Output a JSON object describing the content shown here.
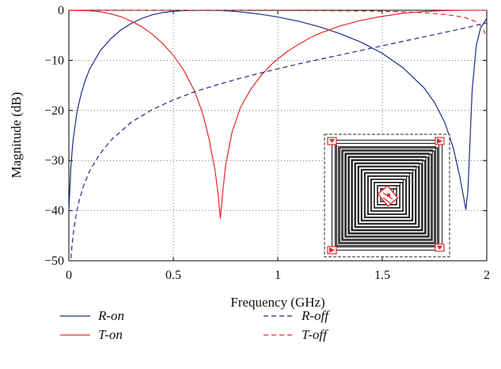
{
  "chart_data": {
    "type": "line",
    "xlabel": "Frequency (GHz)",
    "ylabel": "Magnitude (dB)",
    "xlim": [
      0,
      2
    ],
    "ylim": [
      -50,
      0
    ],
    "x_ticks": [
      0,
      0.5,
      1,
      1.5,
      2
    ],
    "x_tick_labels": [
      "0",
      "0.5",
      "1",
      "1.5",
      "2"
    ],
    "y_ticks": [
      0,
      -10,
      -20,
      -30,
      -40,
      -50
    ],
    "y_tick_labels": [
      "0",
      "−10",
      "−20",
      "−30",
      "−40",
      "−50"
    ],
    "grid": "dotted",
    "legend_placement": "bottom",
    "series": [
      {
        "name": "R-on",
        "color": "#1f2a8a",
        "dash": "solid",
        "x": [
          0.0,
          0.01,
          0.02,
          0.04,
          0.06,
          0.08,
          0.1,
          0.15,
          0.2,
          0.25,
          0.3,
          0.35,
          0.4,
          0.45,
          0.5,
          0.55,
          0.6,
          0.65,
          0.7,
          0.75,
          0.8,
          0.85,
          0.9,
          0.95,
          1.0,
          1.1,
          1.2,
          1.3,
          1.4,
          1.5,
          1.6,
          1.7,
          1.75,
          1.8,
          1.84,
          1.87,
          1.89,
          1.9,
          1.91,
          1.93,
          1.95,
          1.97,
          2.0
        ],
        "y": [
          -40,
          -31,
          -26,
          -20,
          -16.5,
          -13.8,
          -11.7,
          -8.1,
          -5.7,
          -3.9,
          -2.6,
          -1.6,
          -0.9,
          -0.45,
          -0.2,
          -0.08,
          -0.02,
          0,
          -0.02,
          -0.1,
          -0.25,
          -0.45,
          -0.7,
          -1.0,
          -1.35,
          -2.2,
          -3.3,
          -4.7,
          -6.4,
          -8.6,
          -11.5,
          -15.5,
          -18.4,
          -22.5,
          -27.5,
          -33,
          -37.5,
          -39.8,
          -36,
          -16,
          -7,
          -3.6,
          -1.6
        ]
      },
      {
        "name": "T-on",
        "color": "#e8262a",
        "dash": "solid",
        "x": [
          0.0,
          0.1,
          0.15,
          0.2,
          0.25,
          0.3,
          0.35,
          0.4,
          0.45,
          0.5,
          0.55,
          0.6,
          0.64,
          0.67,
          0.7,
          0.715,
          0.725,
          0.735,
          0.75,
          0.78,
          0.82,
          0.87,
          0.92,
          0.97,
          1.0,
          1.05,
          1.1,
          1.15,
          1.2,
          1.3,
          1.4,
          1.5,
          1.6,
          1.7,
          1.8,
          1.9,
          2.0
        ],
        "y": [
          0,
          -0.1,
          -0.3,
          -0.7,
          -1.3,
          -2.2,
          -3.3,
          -4.8,
          -6.7,
          -9.0,
          -12.0,
          -16.0,
          -20.5,
          -25.5,
          -32,
          -37,
          -41.5,
          -37,
          -31,
          -24.5,
          -19.5,
          -15.8,
          -13.0,
          -10.8,
          -9.7,
          -8.1,
          -6.8,
          -5.6,
          -4.6,
          -3.1,
          -2.0,
          -1.2,
          -0.6,
          -0.25,
          -0.07,
          -0.01,
          0
        ]
      },
      {
        "name": "R-off",
        "color": "#1f2a8a",
        "dash": "dashed",
        "x": [
          0.01,
          0.015,
          0.02,
          0.03,
          0.04,
          0.05,
          0.07,
          0.1,
          0.15,
          0.2,
          0.3,
          0.4,
          0.5,
          0.6,
          0.7,
          0.8,
          0.9,
          1.0,
          1.1,
          1.2,
          1.3,
          1.4,
          1.5,
          1.6,
          1.7,
          1.8,
          1.9,
          2.0
        ],
        "y": [
          -49.5,
          -47,
          -45,
          -42,
          -39.7,
          -37.9,
          -35.1,
          -32.0,
          -28.6,
          -26.0,
          -22.3,
          -19.8,
          -17.9,
          -16.3,
          -15.0,
          -13.8,
          -12.7,
          -11.7,
          -10.7,
          -9.8,
          -8.9,
          -8.0,
          -7.1,
          -6.2,
          -5.3,
          -4.4,
          -3.5,
          -2.5
        ]
      },
      {
        "name": "T-off",
        "color": "#e8262a",
        "dash": "dashed",
        "x": [
          0.0,
          0.2,
          0.4,
          0.6,
          0.8,
          1.0,
          1.2,
          1.4,
          1.5,
          1.6,
          1.7,
          1.75,
          1.8,
          1.85,
          1.9,
          1.95,
          1.98,
          2.0
        ],
        "y": [
          0,
          0,
          -0.01,
          -0.02,
          -0.03,
          -0.05,
          -0.08,
          -0.15,
          -0.2,
          -0.3,
          -0.5,
          -0.65,
          -0.85,
          -1.1,
          -1.5,
          -2.3,
          -3.4,
          -5.5
        ]
      }
    ]
  },
  "legend": [
    {
      "label": "R-on",
      "color": "#1f2a8a",
      "dash": "solid"
    },
    {
      "label": "T-on",
      "color": "#e8262a",
      "dash": "solid"
    },
    {
      "label": "R-off",
      "color": "#1f2a8a",
      "dash": "dashed"
    },
    {
      "label": "T-off",
      "color": "#e8262a",
      "dash": "dashed"
    }
  ],
  "inset": {
    "description_icon": "spiral-inductor-layout",
    "frame_color": "#555555",
    "coil_color": "#1a1a1a",
    "port_color": "#e8262a"
  }
}
